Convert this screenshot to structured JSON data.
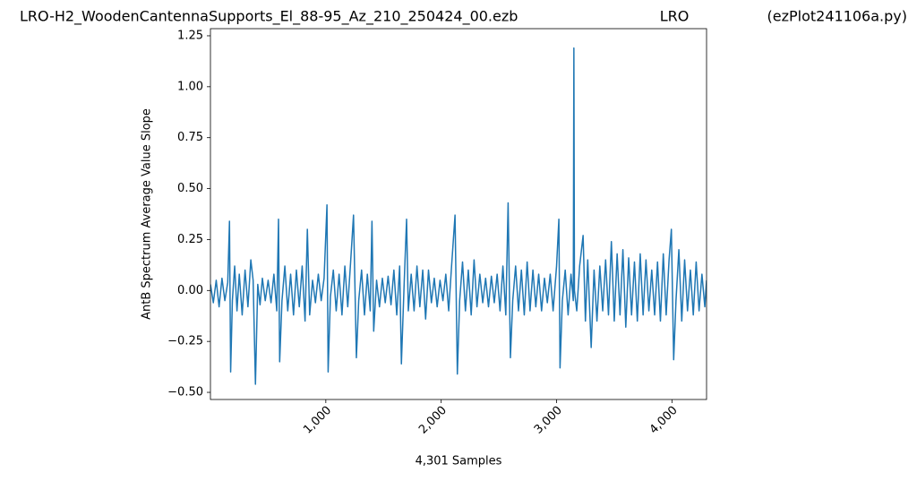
{
  "chart_data": {
    "type": "line",
    "title": "LRO-H2_WoodenCantennaSupports_El_88-95_Az_210_250424_00.ezb",
    "title_center": "LRO",
    "title_right": "(ezPlot241106a.py)",
    "xlabel": "4,301 Samples",
    "ylabel": "AntB Spectrum Average Value Slope",
    "xlim": [
      0,
      4300
    ],
    "ylim": [
      -0.535,
      1.285
    ],
    "xticks": [
      {
        "value": 1000,
        "label": "1,000"
      },
      {
        "value": 2000,
        "label": "2,000"
      },
      {
        "value": 3000,
        "label": "3,000"
      },
      {
        "value": 4000,
        "label": "4,000"
      }
    ],
    "yticks": [
      -0.5,
      -0.25,
      0.0,
      0.25,
      0.5,
      0.75,
      1.0,
      1.25
    ],
    "ytick_labels": [
      "−0.50",
      "−0.25",
      "0.00",
      "0.25",
      "0.50",
      "0.75",
      "1.00",
      "1.25"
    ],
    "grid": false,
    "series": [
      {
        "color": "#1f77b4",
        "x": [
          0,
          25,
          50,
          75,
          100,
          125,
          150,
          165,
          175,
          190,
          210,
          230,
          250,
          275,
          300,
          325,
          350,
          370,
          390,
          410,
          430,
          450,
          475,
          500,
          525,
          550,
          575,
          590,
          600,
          620,
          645,
          670,
          695,
          720,
          745,
          770,
          795,
          820,
          840,
          860,
          885,
          910,
          935,
          960,
          985,
          1010,
          1020,
          1040,
          1065,
          1090,
          1115,
          1140,
          1165,
          1190,
          1215,
          1240,
          1265,
          1285,
          1310,
          1335,
          1360,
          1385,
          1400,
          1415,
          1440,
          1465,
          1490,
          1515,
          1540,
          1565,
          1590,
          1615,
          1640,
          1655,
          1680,
          1700,
          1715,
          1740,
          1765,
          1790,
          1815,
          1840,
          1865,
          1890,
          1915,
          1940,
          1965,
          1990,
          2015,
          2040,
          2065,
          2090,
          2120,
          2140,
          2160,
          2185,
          2210,
          2235,
          2260,
          2285,
          2310,
          2335,
          2360,
          2385,
          2410,
          2435,
          2460,
          2485,
          2510,
          2535,
          2560,
          2580,
          2600,
          2620,
          2645,
          2670,
          2695,
          2720,
          2745,
          2770,
          2795,
          2820,
          2845,
          2870,
          2895,
          2920,
          2945,
          2970,
          3000,
          3020,
          3030,
          3050,
          3075,
          3100,
          3125,
          3145,
          3150,
          3155,
          3175,
          3200,
          3230,
          3250,
          3270,
          3300,
          3325,
          3350,
          3375,
          3400,
          3425,
          3450,
          3475,
          3500,
          3525,
          3550,
          3575,
          3600,
          3625,
          3650,
          3675,
          3700,
          3725,
          3750,
          3775,
          3800,
          3825,
          3850,
          3875,
          3900,
          3925,
          3950,
          3975,
          3995,
          4015,
          4035,
          4060,
          4085,
          4110,
          4135,
          4160,
          4185,
          4210,
          4235,
          4260,
          4285,
          4300
        ],
        "values": [
          0.03,
          -0.06,
          0.05,
          -0.08,
          0.06,
          -0.05,
          0.04,
          0.34,
          -0.4,
          -0.05,
          0.12,
          -0.1,
          0.08,
          -0.12,
          0.1,
          -0.08,
          0.15,
          0.05,
          -0.46,
          0.03,
          -0.07,
          0.06,
          -0.05,
          0.05,
          -0.06,
          0.08,
          -0.1,
          0.35,
          -0.35,
          -0.05,
          0.12,
          -0.1,
          0.08,
          -0.12,
          0.1,
          -0.08,
          0.12,
          -0.15,
          0.3,
          -0.12,
          0.05,
          -0.06,
          0.08,
          -0.05,
          0.06,
          0.42,
          -0.4,
          -0.03,
          0.1,
          -0.1,
          0.08,
          -0.12,
          0.12,
          -0.08,
          0.14,
          0.37,
          -0.33,
          -0.05,
          0.1,
          -0.12,
          0.08,
          -0.1,
          0.34,
          -0.2,
          0.05,
          -0.08,
          0.06,
          -0.06,
          0.07,
          -0.07,
          0.1,
          -0.12,
          0.12,
          -0.36,
          0.05,
          0.35,
          -0.1,
          0.08,
          -0.1,
          0.12,
          -0.08,
          0.1,
          -0.14,
          0.1,
          -0.06,
          0.06,
          -0.08,
          0.05,
          -0.05,
          0.08,
          -0.1,
          0.12,
          0.37,
          -0.41,
          -0.05,
          0.14,
          -0.1,
          0.1,
          -0.12,
          0.15,
          -0.08,
          0.08,
          -0.06,
          0.06,
          -0.08,
          0.07,
          -0.06,
          0.08,
          -0.1,
          0.12,
          -0.12,
          0.43,
          -0.33,
          -0.05,
          0.12,
          -0.1,
          0.1,
          -0.12,
          0.14,
          -0.1,
          0.1,
          -0.08,
          0.08,
          -0.1,
          0.06,
          -0.06,
          0.08,
          -0.1,
          0.12,
          0.35,
          -0.38,
          -0.05,
          0.1,
          -0.12,
          0.08,
          -0.05,
          1.19,
          0.0,
          -0.1,
          0.12,
          0.27,
          -0.15,
          0.15,
          -0.28,
          0.1,
          -0.15,
          0.12,
          -0.1,
          0.15,
          -0.12,
          0.24,
          -0.15,
          0.18,
          -0.12,
          0.2,
          -0.18,
          0.16,
          -0.12,
          0.14,
          -0.15,
          0.18,
          -0.12,
          0.15,
          -0.1,
          0.1,
          -0.12,
          0.14,
          -0.15,
          0.18,
          -0.12,
          0.15,
          0.3,
          -0.34,
          -0.05,
          0.2,
          -0.15,
          0.15,
          -0.1,
          0.1,
          -0.12,
          0.14,
          -0.1,
          0.08,
          -0.08,
          0.05
        ]
      }
    ]
  }
}
